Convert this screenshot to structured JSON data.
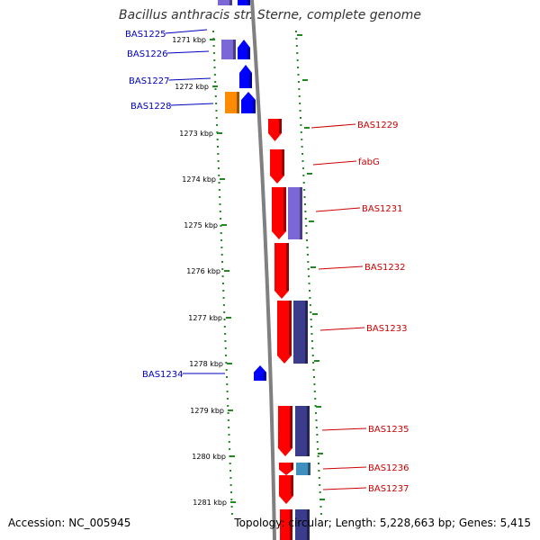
{
  "title": "Bacillus anthracis str. Sterne, complete genome",
  "footer": {
    "accession": "Accession: NC_005945",
    "info": "Topology: circular; Length: 5,228,663 bp; Genes: 5,415"
  },
  "colors": {
    "gene_forward": "#ff0000",
    "gene_reverse": "#0000ff",
    "label_forward": "#cc0000",
    "label_reverse": "#0000bb",
    "ruler": "#228822",
    "backbone": "#808080",
    "cog_light": "#7b68d6",
    "cog_dark": "#3c3c8c",
    "cog_orange": "#ff8c00",
    "cog_teal": "#3f8fbf"
  },
  "ticks": [
    "1271 kbp",
    "1272 kbp",
    "1273 kbp",
    "1274 kbp",
    "1275 kbp",
    "1276 kbp",
    "1277 kbp",
    "1278 kbp",
    "1279 kbp",
    "1280 kbp",
    "1281 kbp"
  ],
  "genes_reverse": [
    {
      "name": "BAS1225"
    },
    {
      "name": "BAS1226"
    },
    {
      "name": "BAS1227"
    },
    {
      "name": "BAS1228"
    },
    {
      "name": "BAS1234"
    }
  ],
  "genes_forward": [
    {
      "name": "BAS1229"
    },
    {
      "name": "fabG"
    },
    {
      "name": "BAS1231"
    },
    {
      "name": "BAS1232"
    },
    {
      "name": "BAS1233"
    },
    {
      "name": "BAS1235"
    },
    {
      "name": "BAS1236"
    },
    {
      "name": "BAS1237"
    }
  ]
}
